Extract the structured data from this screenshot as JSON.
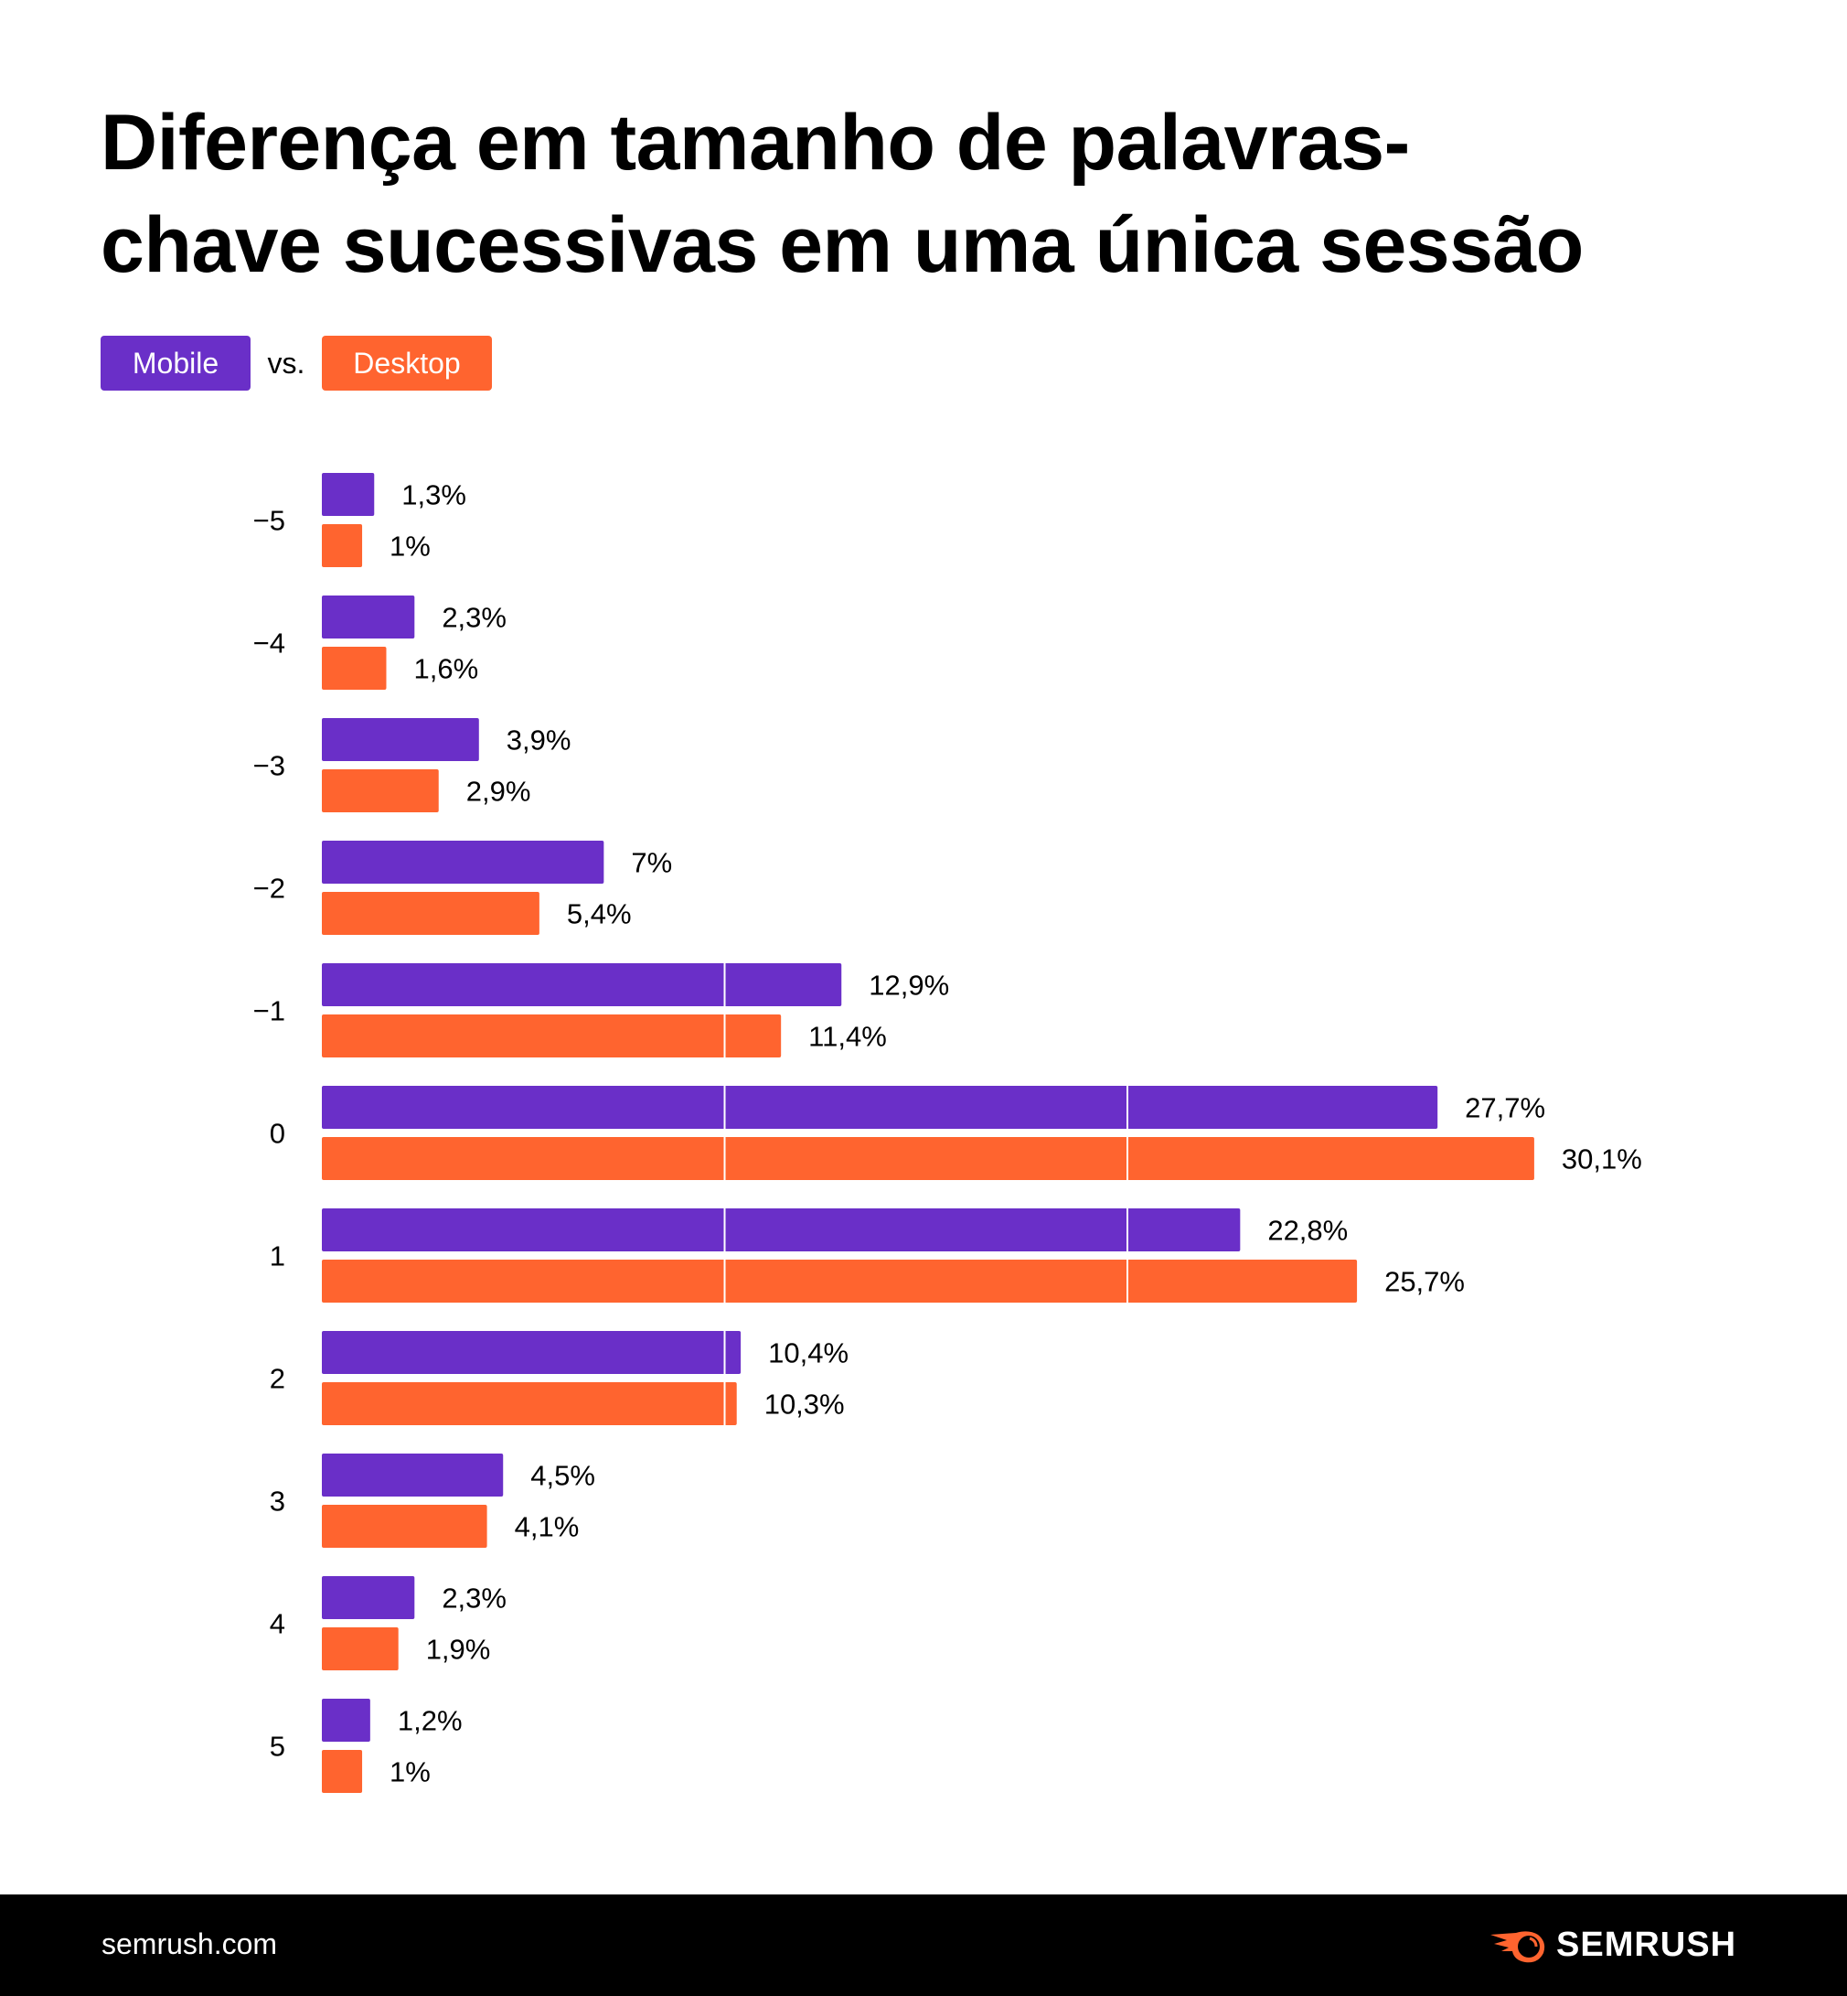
{
  "title_lines": [
    "Diferença em tamanho de palavras-",
    "chave sucessivas em uma única sessão"
  ],
  "legend": {
    "mobile": "Mobile",
    "vs": "vs.",
    "desktop": "Desktop"
  },
  "colors": {
    "mobile": "#6a2fc8",
    "desktop": "#ff642f",
    "gridline": "#ffffff"
  },
  "footer": {
    "site": "semrush.com",
    "brand": "SEMRUSH",
    "logo_icon": "semrush-fireball-icon"
  },
  "chart_data": {
    "type": "bar",
    "orientation": "horizontal",
    "categories": [
      "−5",
      "−4",
      "−3",
      "−2",
      "−1",
      "0",
      "1",
      "2",
      "3",
      "4",
      "5"
    ],
    "series": [
      {
        "name": "Mobile",
        "values": [
          1.3,
          2.3,
          3.9,
          7,
          12.9,
          27.7,
          22.8,
          10.4,
          4.5,
          2.3,
          1.2
        ],
        "labels": [
          "1,3%",
          "2,3%",
          "3,9%",
          "7%",
          "12,9%",
          "27,7%",
          "22,8%",
          "10,4%",
          "4,5%",
          "2,3%",
          "1,2%"
        ]
      },
      {
        "name": "Desktop",
        "values": [
          1,
          1.6,
          2.9,
          5.4,
          11.4,
          30.1,
          25.7,
          10.3,
          4.1,
          1.9,
          1
        ],
        "labels": [
          "1%",
          "1,6%",
          "2,9%",
          "5,4%",
          "11,4%",
          "30,1%",
          "25,7%",
          "10,3%",
          "4,1%",
          "1,9%",
          "1%"
        ]
      }
    ],
    "gridlines_at": [
      10,
      20
    ],
    "xlim": [
      0,
      30.1
    ],
    "legend_position": "top-left"
  }
}
